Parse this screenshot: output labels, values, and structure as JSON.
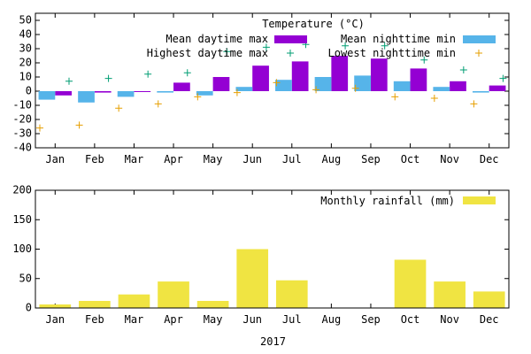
{
  "colors": {
    "mean_min": "#56b4e9",
    "mean_max": "#9400d3",
    "highest_max": "#009e73",
    "lowest_min": "#e69f00",
    "rainfall": "#f0e442"
  },
  "chart_data": [
    {
      "type": "bar",
      "title": "Temperature (°C)",
      "categories": [
        "Jan",
        "Feb",
        "Mar",
        "Apr",
        "May",
        "Jun",
        "Jul",
        "Aug",
        "Sep",
        "Oct",
        "Nov",
        "Dec"
      ],
      "ylim": [
        -40,
        55
      ],
      "yticks": [
        -40,
        -30,
        -20,
        -10,
        0,
        10,
        20,
        30,
        40,
        50
      ],
      "legend_position": "top-right",
      "grid": false,
      "series": [
        {
          "name": "Mean daytime max",
          "kind": "bar",
          "color_key": "mean_max",
          "values": [
            -3,
            -1,
            0,
            6,
            10,
            18,
            21,
            25,
            23,
            16,
            7,
            4
          ]
        },
        {
          "name": "Mean nighttime min",
          "kind": "bar",
          "color_key": "mean_min",
          "values": [
            -6,
            -8,
            -4,
            -1,
            -3,
            3,
            8,
            10,
            11,
            7,
            3,
            -1
          ]
        },
        {
          "name": "Highest daytime max",
          "kind": "point",
          "marker": "+",
          "color_key": "highest_max",
          "values": [
            7,
            9,
            12,
            13,
            28,
            31,
            33,
            32,
            32,
            22,
            15,
            9
          ]
        },
        {
          "name": "Lowest nighttime min",
          "kind": "point",
          "marker": "+",
          "color_key": "lowest_min",
          "values": [
            -26,
            -24,
            -12,
            -9,
            -4,
            -1,
            6,
            1,
            2,
            -4,
            -5,
            -9
          ]
        }
      ]
    },
    {
      "type": "bar",
      "categories": [
        "Jan",
        "Feb",
        "Mar",
        "Apr",
        "May",
        "Jun",
        "Jul",
        "Aug",
        "Sep",
        "Oct",
        "Nov",
        "Dec"
      ],
      "xlabel": "2017",
      "ylim": [
        0,
        200
      ],
      "yticks": [
        0,
        50,
        100,
        150,
        200
      ],
      "legend_position": "top-right",
      "grid": false,
      "series": [
        {
          "name": "Monthly rainfall (mm)",
          "kind": "bar",
          "color_key": "rainfall",
          "values": [
            6,
            12,
            23,
            45,
            12,
            100,
            47,
            0,
            0,
            82,
            45,
            28
          ]
        }
      ]
    }
  ]
}
